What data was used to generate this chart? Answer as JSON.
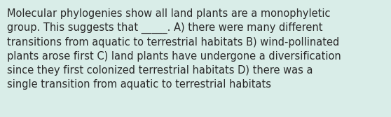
{
  "text": "Molecular phylogenies show all land plants are a monophyletic\ngroup. This suggests that _____. A) there were many different\ntransitions from aquatic to terrestrial habitats B) wind-pollinated\nplants arose first C) land plants have undergone a diversification\nsince they first colonized terrestrial habitats D) there was a\nsingle transition from aquatic to terrestrial habitats",
  "background_color": "#d9ede8",
  "text_color": "#2a2a2a",
  "font_size": 10.5,
  "fig_width": 5.58,
  "fig_height": 1.67,
  "dpi": 100
}
